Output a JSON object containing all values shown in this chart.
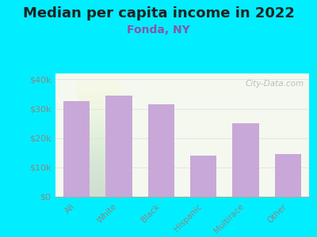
{
  "title": "Median per capita income in 2022",
  "subtitle": "Fonda, NY",
  "categories": [
    "All",
    "White",
    "Black",
    "Hispanic",
    "Multirace",
    "Other"
  ],
  "values": [
    32500,
    34500,
    31500,
    14000,
    25000,
    14500
  ],
  "bar_color": "#c8a8d8",
  "background_outer": "#00eeff",
  "background_inner_top": "#e8f0d8",
  "background_inner_bottom": "#f5f8ee",
  "title_fontsize": 13,
  "subtitle_fontsize": 10,
  "subtitle_color": "#8855aa",
  "tick_label_color": "#888888",
  "ytick_labels": [
    "$0",
    "$10k",
    "$20k",
    "$30k",
    "$40k"
  ],
  "ytick_values": [
    0,
    10000,
    20000,
    30000,
    40000
  ],
  "ylim": [
    0,
    42000
  ],
  "watermark": "City-Data.com"
}
